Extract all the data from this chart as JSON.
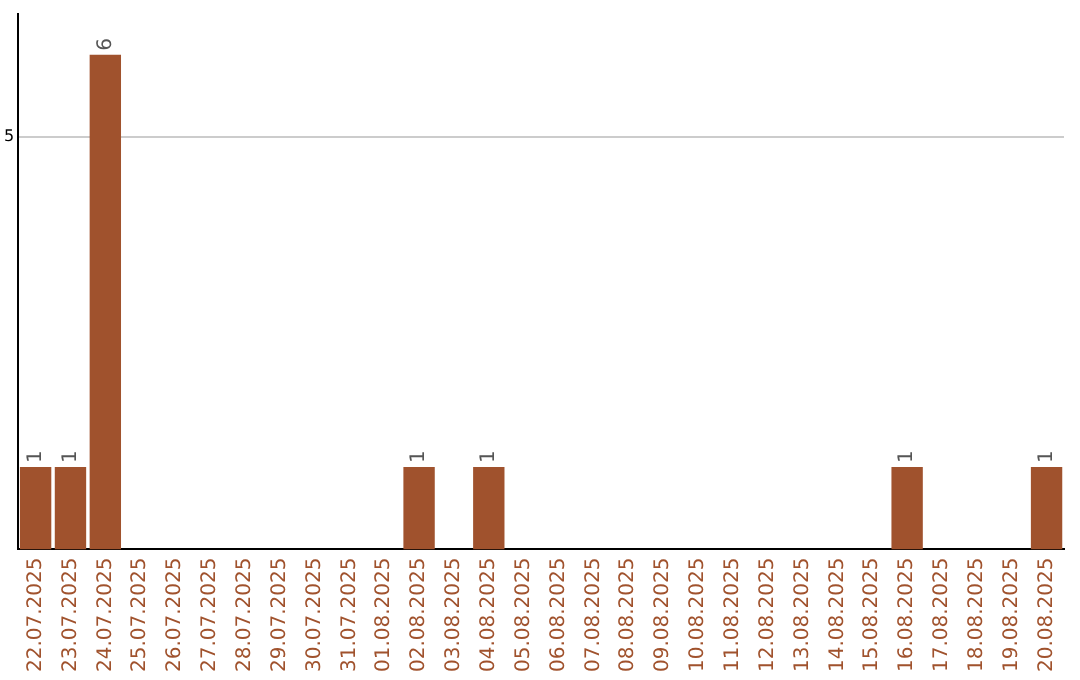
{
  "chart_data": {
    "type": "bar",
    "categories": [
      "22.07.2025",
      "23.07.2025",
      "24.07.2025",
      "25.07.2025",
      "26.07.2025",
      "27.07.2025",
      "28.07.2025",
      "29.07.2025",
      "30.07.2025",
      "31.07.2025",
      "01.08.2025",
      "02.08.2025",
      "03.08.2025",
      "04.08.2025",
      "05.08.2025",
      "06.08.2025",
      "07.08.2025",
      "08.08.2025",
      "09.08.2025",
      "10.08.2025",
      "11.08.2025",
      "12.08.2025",
      "13.08.2025",
      "14.08.2025",
      "15.08.2025",
      "16.08.2025",
      "17.08.2025",
      "18.08.2025",
      "19.08.2025",
      "20.08.2025"
    ],
    "values": [
      1,
      1,
      6,
      0,
      0,
      0,
      0,
      0,
      0,
      0,
      0,
      1,
      0,
      1,
      0,
      0,
      0,
      0,
      0,
      0,
      0,
      0,
      0,
      0,
      0,
      1,
      0,
      0,
      0,
      1
    ],
    "value_labels": [
      "1",
      "1",
      "6",
      null,
      null,
      null,
      null,
      null,
      null,
      null,
      null,
      "1",
      null,
      "1",
      null,
      null,
      null,
      null,
      null,
      null,
      null,
      null,
      null,
      null,
      null,
      "1",
      null,
      null,
      null,
      "1"
    ],
    "color": "#a0522d",
    "ylim": [
      0,
      6.5
    ],
    "yticks": [
      5
    ],
    "grid": "y",
    "legend": false
  }
}
